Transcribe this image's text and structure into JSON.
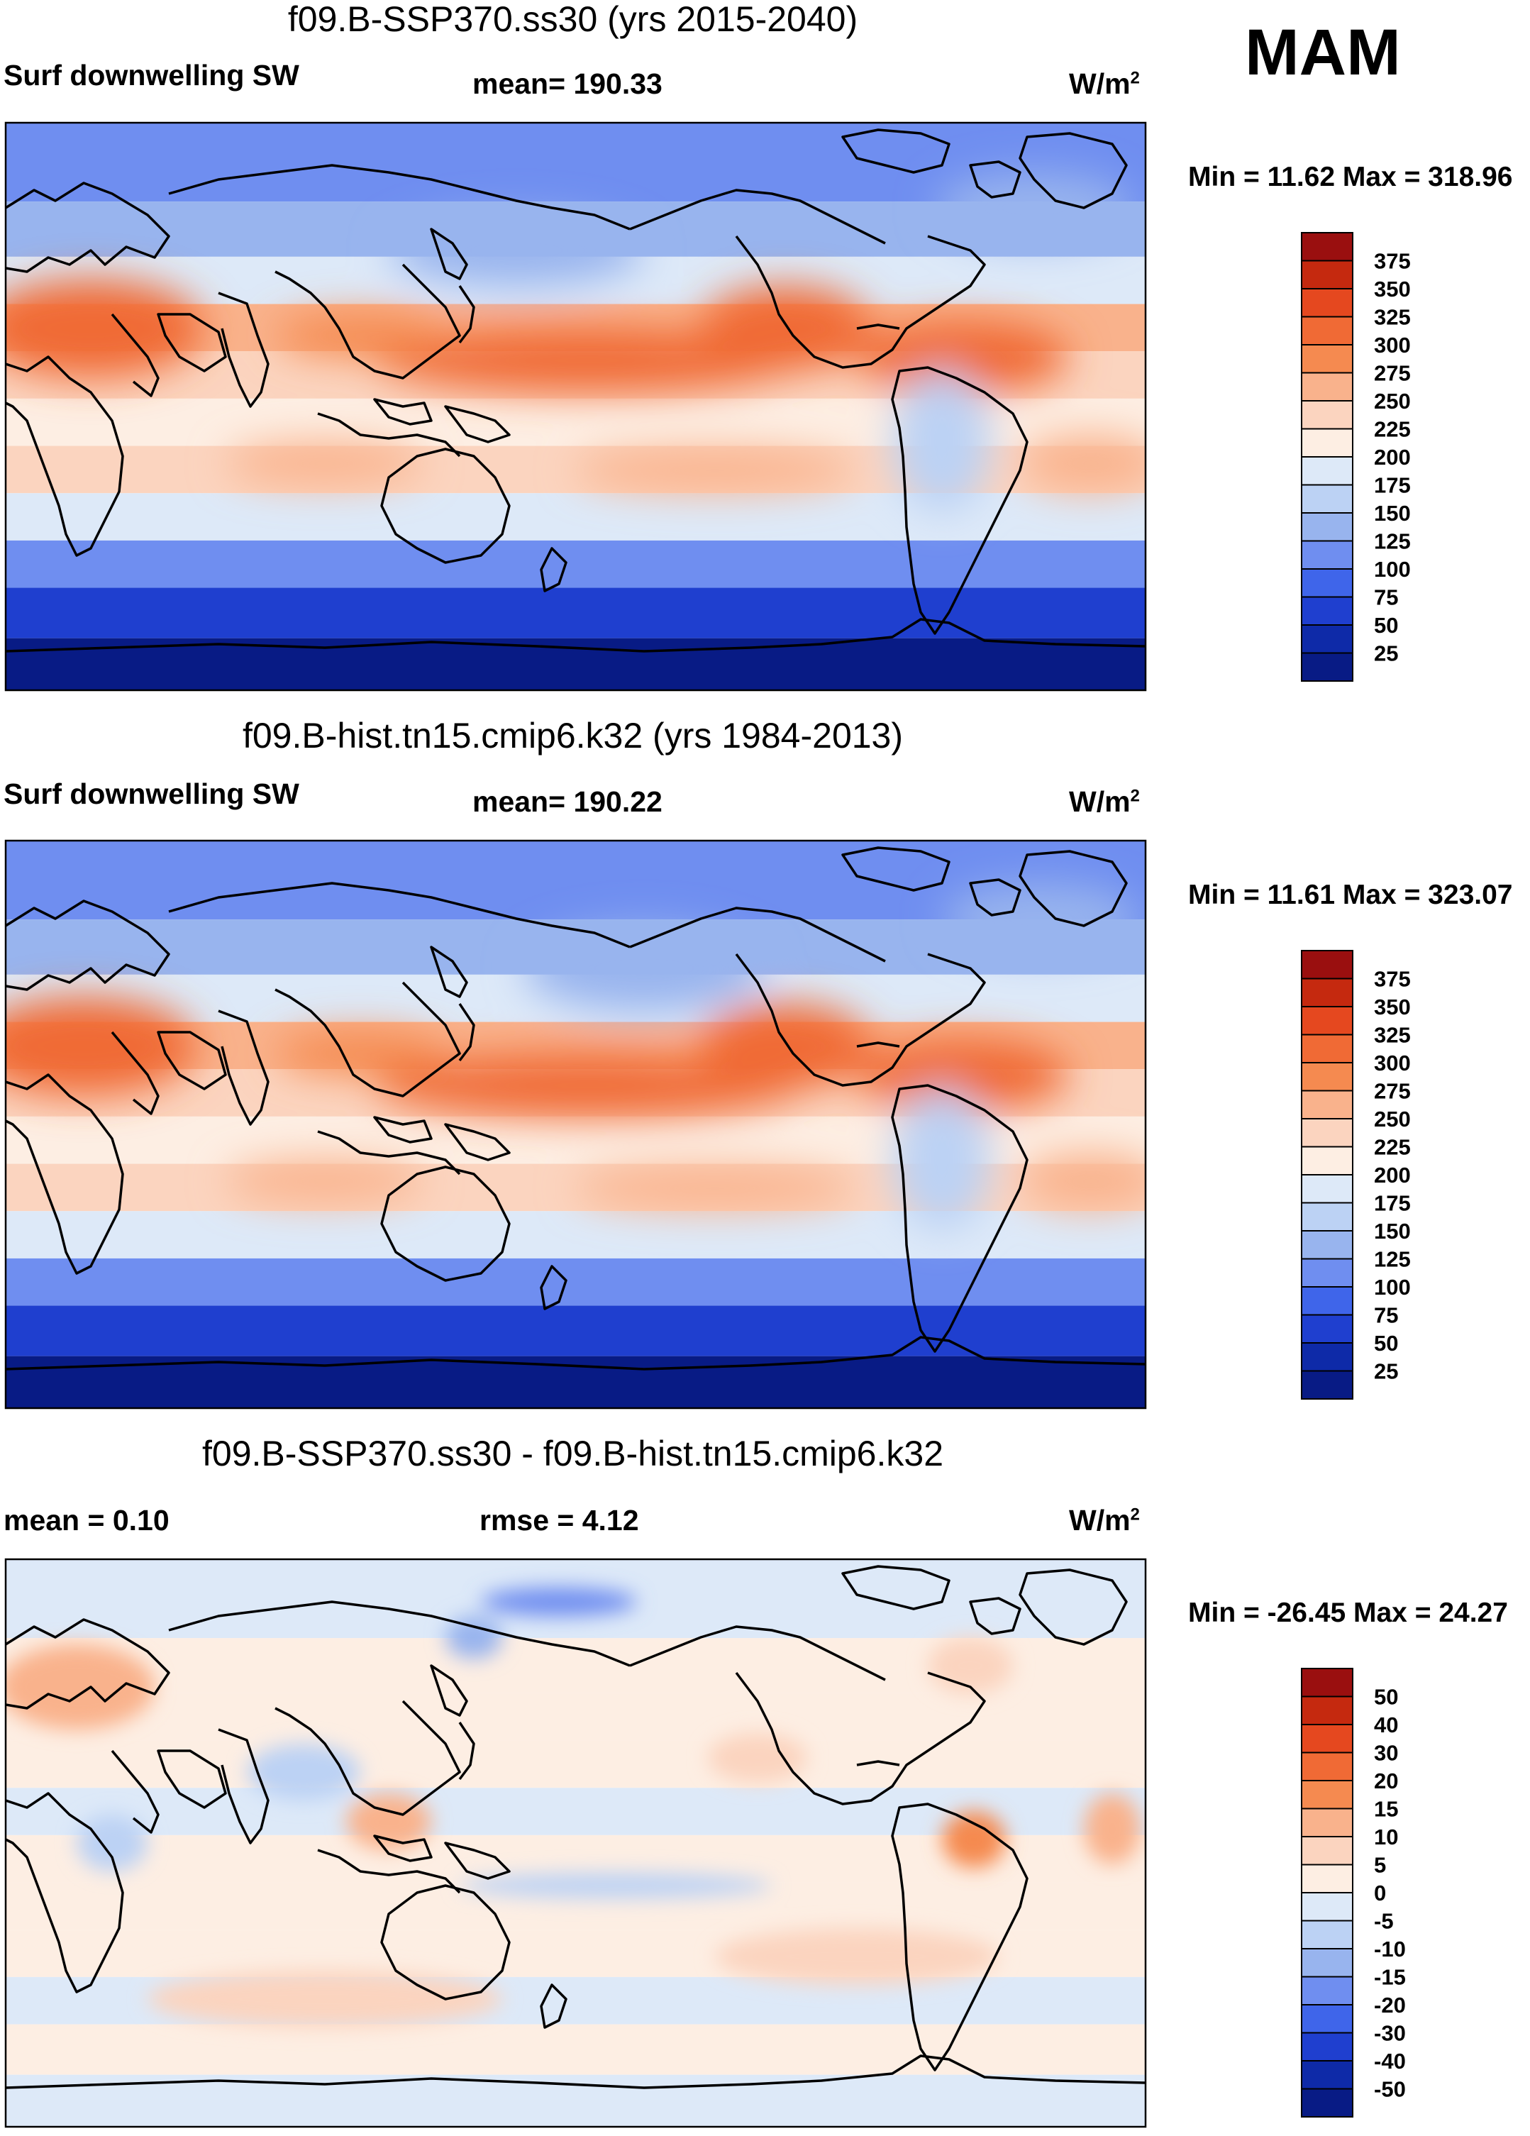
{
  "season": "MAM",
  "panels": [
    {
      "title": "f09.B-SSP370.ss30 (yrs 2015-2040)",
      "left_label": "Surf downwelling SW",
      "center_label": "mean= 190.33",
      "units": "W/m",
      "units_sup": "2",
      "minmax": "Min =  11.62 Max = 318.96"
    },
    {
      "title": "f09.B-hist.tn15.cmip6.k32 (yrs 1984-2013)",
      "left_label": "Surf downwelling SW",
      "center_label": "mean= 190.22",
      "units": "W/m",
      "units_sup": "2",
      "minmax": "Min =  11.61 Max = 323.07"
    },
    {
      "title": "f09.B-SSP370.ss30 - f09.B-hist.tn15.cmip6.k32",
      "left_label": "mean =   0.10",
      "center_label": "rmse =    4.12",
      "units": "W/m",
      "units_sup": "2",
      "minmax": "Min = -26.45 Max =  24.27"
    }
  ],
  "chart_data": [
    {
      "type": "heatmap",
      "title": "f09.B-SSP370.ss30 (yrs 2015-2040)",
      "variable": "Surf downwelling SW",
      "units": "W/m2",
      "mean": 190.33,
      "min": 11.62,
      "max": 318.96,
      "colorbar_levels": [
        375,
        350,
        325,
        300,
        275,
        250,
        225,
        200,
        175,
        150,
        125,
        100,
        75,
        50,
        25
      ],
      "colorbar_colors": [
        "#9a0f0f",
        "#c5290f",
        "#e5481f",
        "#f06a35",
        "#f58a50",
        "#f9b28c",
        "#fbd4bf",
        "#fdeee3",
        "#dde9f8",
        "#bcd2f4",
        "#98b4ee",
        "#6f8ef0",
        "#3f65ea",
        "#1f3fcf",
        "#0e2aa8",
        "#081b85"
      ],
      "latitude_band_means": [
        {
          "lat": 75,
          "value": 115
        },
        {
          "lat": 55,
          "value": 135
        },
        {
          "lat": 40,
          "value": 195
        },
        {
          "lat": 25,
          "value": 265
        },
        {
          "lat": 10,
          "value": 240
        },
        {
          "lat": -5,
          "value": 215
        },
        {
          "lat": -20,
          "value": 235
        },
        {
          "lat": -35,
          "value": 185
        },
        {
          "lat": -50,
          "value": 110
        },
        {
          "lat": -65,
          "value": 50
        },
        {
          "lat": -82,
          "value": 18
        }
      ]
    },
    {
      "type": "heatmap",
      "title": "f09.B-hist.tn15.cmip6.k32 (yrs 1984-2013)",
      "variable": "Surf downwelling SW",
      "units": "W/m2",
      "mean": 190.22,
      "min": 11.61,
      "max": 323.07,
      "colorbar_levels": [
        375,
        350,
        325,
        300,
        275,
        250,
        225,
        200,
        175,
        150,
        125,
        100,
        75,
        50,
        25
      ],
      "colorbar_colors": [
        "#9a0f0f",
        "#c5290f",
        "#e5481f",
        "#f06a35",
        "#f58a50",
        "#f9b28c",
        "#fbd4bf",
        "#fdeee3",
        "#dde9f8",
        "#bcd2f4",
        "#98b4ee",
        "#6f8ef0",
        "#3f65ea",
        "#1f3fcf",
        "#0e2aa8",
        "#081b85"
      ],
      "latitude_band_means": [
        {
          "lat": 75,
          "value": 115
        },
        {
          "lat": 55,
          "value": 135
        },
        {
          "lat": 40,
          "value": 195
        },
        {
          "lat": 25,
          "value": 268
        },
        {
          "lat": 10,
          "value": 240
        },
        {
          "lat": -5,
          "value": 215
        },
        {
          "lat": -20,
          "value": 235
        },
        {
          "lat": -35,
          "value": 185
        },
        {
          "lat": -50,
          "value": 110
        },
        {
          "lat": -65,
          "value": 50
        },
        {
          "lat": -82,
          "value": 18
        }
      ]
    },
    {
      "type": "heatmap",
      "title": "f09.B-SSP370.ss30 - f09.B-hist.tn15.cmip6.k32",
      "variable": "difference",
      "units": "W/m2",
      "mean": 0.1,
      "rmse": 4.12,
      "min": -26.45,
      "max": 24.27,
      "colorbar_levels": [
        50,
        40,
        30,
        20,
        15,
        10,
        5,
        0,
        -5,
        -10,
        -15,
        -20,
        -30,
        -40,
        -50
      ],
      "colorbar_colors": [
        "#9a0f0f",
        "#c5290f",
        "#e5481f",
        "#f06a35",
        "#f58a50",
        "#f9b28c",
        "#fbd4bf",
        "#fdeee3",
        "#dde9f8",
        "#bcd2f4",
        "#98b4ee",
        "#6f8ef0",
        "#3f65ea",
        "#1f3fcf",
        "#0e2aa8",
        "#081b85"
      ],
      "latitude_band_means": [
        {
          "lat": 75,
          "value": -3
        },
        {
          "lat": 55,
          "value": 1
        },
        {
          "lat": 40,
          "value": 2
        },
        {
          "lat": 25,
          "value": 1
        },
        {
          "lat": 10,
          "value": -2
        },
        {
          "lat": -5,
          "value": 2
        },
        {
          "lat": -20,
          "value": 1
        },
        {
          "lat": -35,
          "value": 1
        },
        {
          "lat": -50,
          "value": -2
        },
        {
          "lat": -65,
          "value": 1
        },
        {
          "lat": -82,
          "value": -1
        }
      ]
    }
  ]
}
